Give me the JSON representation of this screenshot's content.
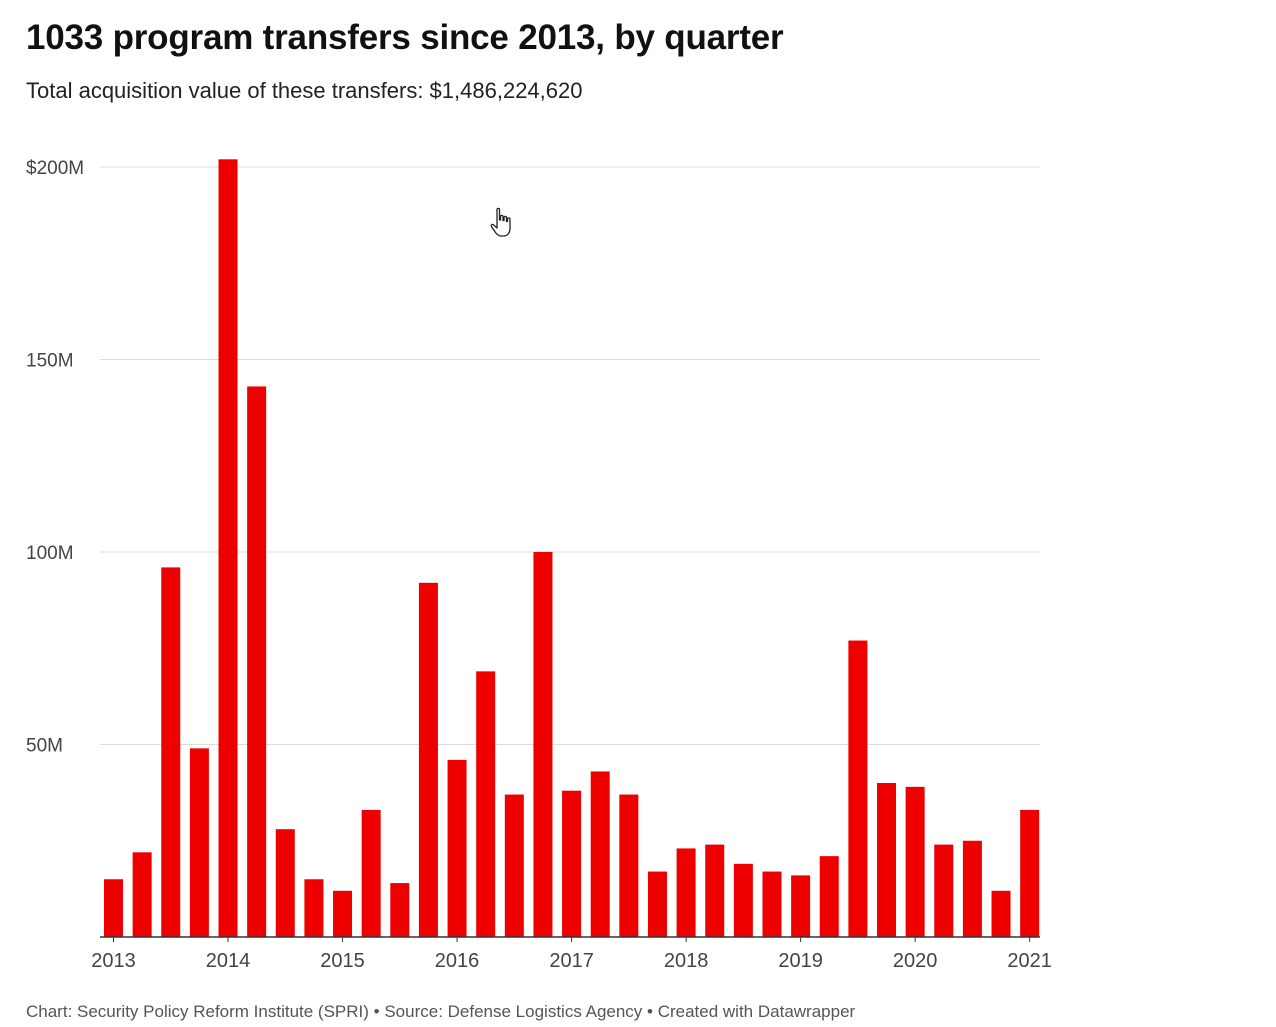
{
  "header": {
    "title": "1033 program transfers since 2013, by quarter",
    "subtitle": "Total acquisition value of these transfers: $1,486,224,620"
  },
  "footer": {
    "credit": "Chart: Security Policy Reform Institute (SPRI) • Source: Defense Logistics Agency • Created with Datawrapper"
  },
  "colors": {
    "bar": "#ee0000",
    "grid": "#dddddd",
    "axis": "#333333",
    "tick_text": "#444444"
  },
  "cursor": {
    "icon": "hand-pointer-icon"
  },
  "chart_data": {
    "type": "bar",
    "title": "1033 program transfers since 2013, by quarter",
    "subtitle": "Total acquisition value of these transfers: $1,486,224,620",
    "xlabel": "",
    "ylabel": "",
    "units": "USD millions",
    "ylim": [
      0,
      200
    ],
    "grid": true,
    "categories": [
      "2013 Q1",
      "2013 Q2",
      "2013 Q3",
      "2013 Q4",
      "2014 Q1",
      "2014 Q2",
      "2014 Q3",
      "2014 Q4",
      "2015 Q1",
      "2015 Q2",
      "2015 Q3",
      "2015 Q4",
      "2016 Q1",
      "2016 Q2",
      "2016 Q3",
      "2016 Q4",
      "2017 Q1",
      "2017 Q2",
      "2017 Q3",
      "2017 Q4",
      "2018 Q1",
      "2018 Q2",
      "2018 Q3",
      "2018 Q4",
      "2019 Q1",
      "2019 Q2",
      "2019 Q3",
      "2019 Q4",
      "2020 Q1",
      "2020 Q2",
      "2020 Q3",
      "2020 Q4",
      "2021 Q1"
    ],
    "values": [
      15,
      22,
      96,
      49,
      202,
      143,
      28,
      15,
      12,
      33,
      14,
      92,
      46,
      69,
      37,
      100,
      38,
      43,
      37,
      17,
      23,
      24,
      19,
      17,
      16,
      21,
      77,
      40,
      39,
      24,
      25,
      12,
      33
    ],
    "y_ticks": [
      {
        "value": 50,
        "label": "50M"
      },
      {
        "value": 100,
        "label": "100M"
      },
      {
        "value": 150,
        "label": "150M"
      },
      {
        "value": 200,
        "label": "$200M"
      }
    ],
    "x_ticks": [
      {
        "index": 0,
        "label": "2013"
      },
      {
        "index": 4,
        "label": "2014"
      },
      {
        "index": 8,
        "label": "2015"
      },
      {
        "index": 12,
        "label": "2016"
      },
      {
        "index": 16,
        "label": "2017"
      },
      {
        "index": 20,
        "label": "2018"
      },
      {
        "index": 24,
        "label": "2019"
      },
      {
        "index": 28,
        "label": "2020"
      },
      {
        "index": 32,
        "label": "2021"
      }
    ]
  }
}
